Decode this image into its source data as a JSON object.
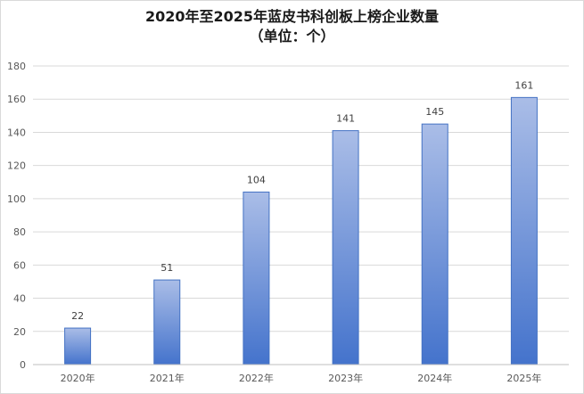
{
  "chart_data": {
    "type": "bar",
    "title": "2020年至2025年蓝皮书科创板上榜企业数量",
    "subtitle": "（单位：个）",
    "categories": [
      "2020年",
      "2021年",
      "2022年",
      "2023年",
      "2024年",
      "2025年"
    ],
    "values": [
      22,
      51,
      104,
      141,
      145,
      161
    ],
    "ylim": [
      0,
      180
    ],
    "yticks": [
      0,
      20,
      40,
      60,
      80,
      100,
      120,
      140,
      160,
      180
    ],
    "grid": true,
    "legend": "none",
    "bar_color_top": "#aabde7",
    "bar_color_bottom": "#4473cc",
    "bar_border": "#4472c4"
  }
}
